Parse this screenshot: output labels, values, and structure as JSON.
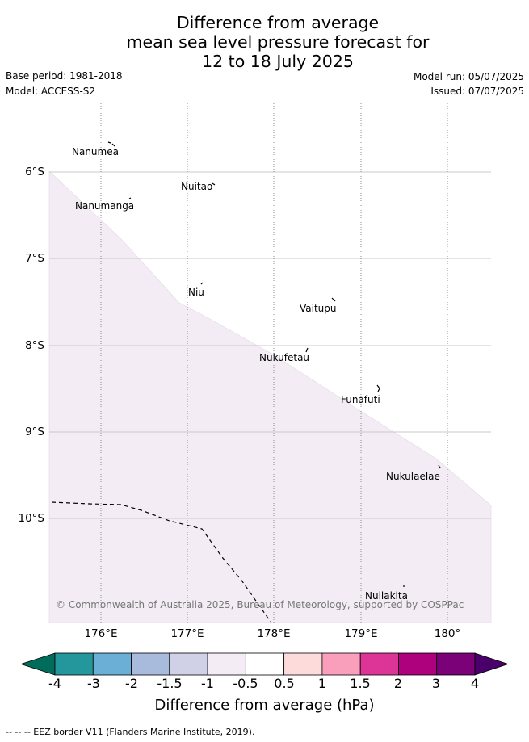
{
  "title": {
    "line1": "Difference from average",
    "line2": "mean sea level pressure forecast for",
    "line3": "12 to 18 July 2025"
  },
  "meta": {
    "base_period": "Base period: 1981-2018",
    "model": "Model: ACCESS-S2",
    "model_run": "Model run: 05/07/2025",
    "issued": "Issued: 07/07/2025"
  },
  "map": {
    "lat_labels": [
      "6°S",
      "7°S",
      "8°S",
      "9°S",
      "10°S"
    ],
    "lon_labels": [
      "176°E",
      "177°E",
      "178°E",
      "179°E",
      "180°"
    ],
    "islands": [
      "Nanumea",
      "Nuitao",
      "Nanumanga",
      "Niu",
      "Vaitupu",
      "Nukufetau",
      "Funafuti",
      "Nukulaelae",
      "Nuilakita"
    ],
    "shaded_band": "-1 to -0.5",
    "shade_color": "#f3ecf5",
    "credit": "© Commonwealth of Australia 2025, Bureau of Meteorology, supported by COSPPac"
  },
  "colorbar": {
    "ticks": [
      "-4",
      "-3",
      "-2",
      "-1.5",
      "-1",
      "-0.5",
      "0.5",
      "1",
      "1.5",
      "2",
      "3",
      "4"
    ],
    "colors": [
      "#23979c",
      "#6baed6",
      "#a8bbdc",
      "#d0d1e6",
      "#f3ecf5",
      "#ffffff",
      "#fddbdb",
      "#f99fbb",
      "#dd3497",
      "#ae017e",
      "#7a0177"
    ],
    "under_color": "#016c59",
    "over_color": "#49006a",
    "title": "Difference from average (hPa)"
  },
  "footer": "-- -- -- EEZ border V11 (Flanders Marine Institute, 2019)."
}
